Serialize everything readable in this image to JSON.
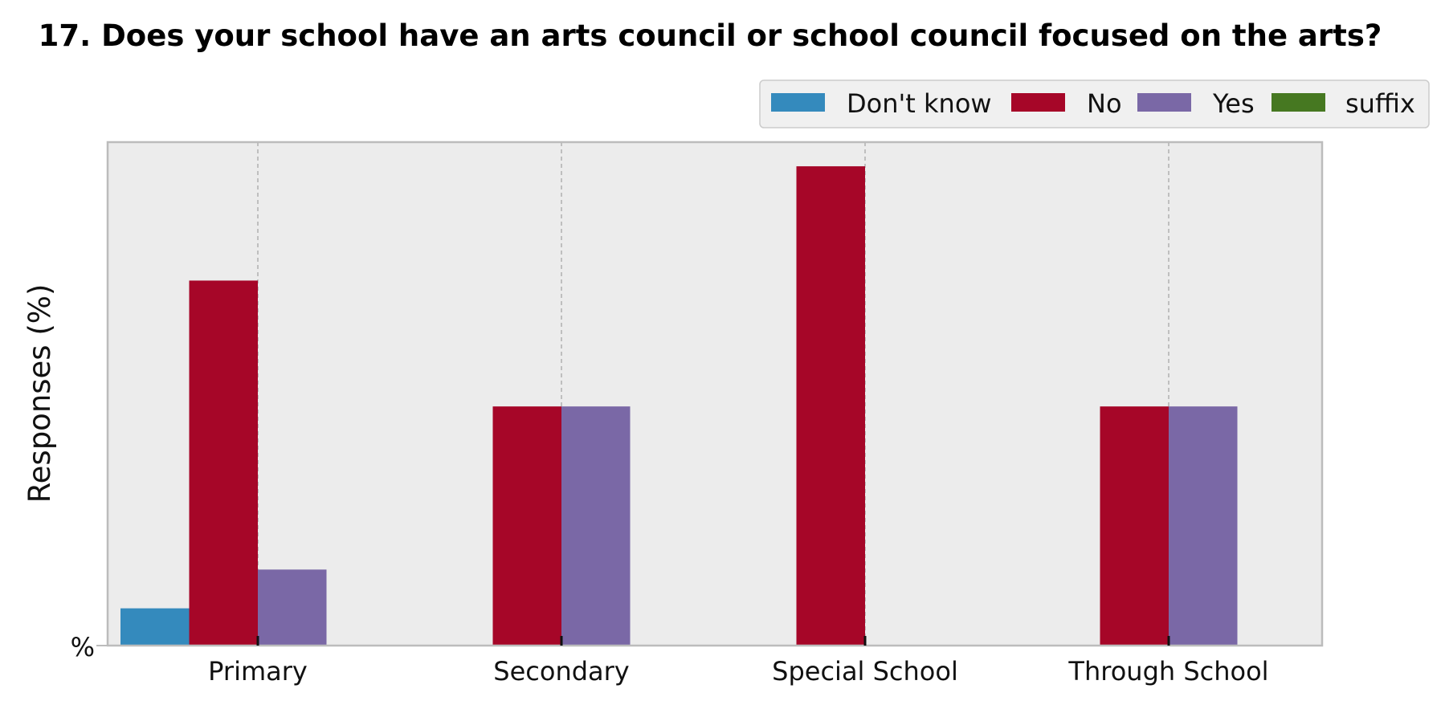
{
  "chart_data": {
    "type": "bar",
    "title": "17. Does your school have an arts council or school council focused on the arts?",
    "xlabel": "",
    "ylabel": "Responses (%)",
    "ytick_labels": [
      "%"
    ],
    "ylim": [
      0,
      100
    ],
    "grid": "vertical dashed lines at category centers",
    "legend_position": "top-right, above plot",
    "categories": [
      "Primary",
      "Secondary",
      "Special School",
      "Through School"
    ],
    "series": [
      {
        "name": "Don't know",
        "color": "#348abd",
        "values": [
          7.4,
          0,
          0,
          0
        ]
      },
      {
        "name": "No",
        "color": "#a60628",
        "values": [
          72.5,
          47.5,
          95.2,
          47.5
        ]
      },
      {
        "name": "Yes",
        "color": "#7a68a6",
        "values": [
          15.1,
          47.5,
          0,
          47.5
        ]
      },
      {
        "name": "suffix",
        "color": "#467821",
        "values": [
          0,
          0,
          0,
          0
        ]
      }
    ],
    "plot_background": "#ececec",
    "frame_color": "#bcbcbc"
  }
}
